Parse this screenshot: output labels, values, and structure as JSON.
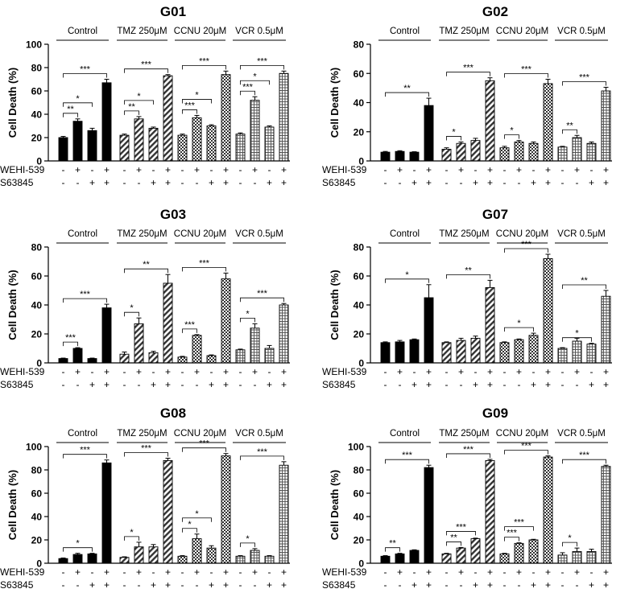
{
  "figure": {
    "ylabel": "Cell Death (%)",
    "row_labels": [
      "WEHI-539",
      "S63845"
    ],
    "row_signs": [
      [
        "-",
        "+",
        "-",
        "+"
      ],
      [
        "-",
        "-",
        "+",
        "+"
      ]
    ]
  },
  "chart_data": [
    {
      "type": "bar",
      "title": "G01",
      "ylabel": "Cell Death (%)",
      "ylim": [
        0,
        100
      ],
      "yticks": [
        0,
        20,
        40,
        60,
        80,
        100
      ],
      "categories": [
        "- / -",
        "+ / -",
        "- / +",
        "+ / +"
      ],
      "series": [
        {
          "name": "Control",
          "values": [
            20,
            34,
            26,
            67
          ],
          "errors": [
            1,
            2,
            2,
            3
          ],
          "comparisons": [
            {
              "to": 1,
              "label": "**"
            },
            {
              "to": 2,
              "label": "*"
            },
            {
              "to": 3,
              "label": "***"
            }
          ]
        },
        {
          "name": "TMZ 250μM",
          "values": [
            22,
            36,
            28,
            73
          ],
          "errors": [
            1,
            2,
            1,
            1
          ],
          "comparisons": [
            {
              "to": 1,
              "label": "**"
            },
            {
              "to": 2,
              "label": "*"
            },
            {
              "to": 3,
              "label": "***"
            }
          ]
        },
        {
          "name": "CCNU 20μM",
          "values": [
            22,
            37,
            30,
            74
          ],
          "errors": [
            1,
            2,
            1,
            3
          ],
          "comparisons": [
            {
              "to": 1,
              "label": "***"
            },
            {
              "to": 2,
              "label": "*"
            },
            {
              "to": 3,
              "label": "***"
            }
          ]
        },
        {
          "name": "VCR 0.5μM",
          "values": [
            23,
            52,
            29,
            75
          ],
          "errors": [
            1,
            3,
            1,
            2
          ],
          "comparisons": [
            {
              "to": 1,
              "label": "***"
            },
            {
              "to": 2,
              "label": "*"
            },
            {
              "to": 3,
              "label": "***"
            }
          ]
        }
      ]
    },
    {
      "type": "bar",
      "title": "G02",
      "ylabel": "Cell Death (%)",
      "ylim": [
        0,
        80
      ],
      "yticks": [
        0,
        20,
        40,
        60,
        80
      ],
      "categories": [
        "- / -",
        "+ / -",
        "- / +",
        "+ / +"
      ],
      "series": [
        {
          "name": "Control",
          "values": [
            6,
            6.5,
            6,
            38
          ],
          "errors": [
            0.5,
            0.5,
            0.3,
            5
          ],
          "comparisons": [
            {
              "to": 3,
              "label": "**"
            }
          ]
        },
        {
          "name": "TMZ 250μM",
          "values": [
            8,
            12,
            14,
            55
          ],
          "errors": [
            1,
            1,
            1.5,
            2
          ],
          "comparisons": [
            {
              "to": 1,
              "label": "*"
            },
            {
              "to": 3,
              "label": "***"
            }
          ]
        },
        {
          "name": "CCNU 20μM",
          "values": [
            9,
            13,
            12,
            53
          ],
          "errors": [
            1,
            1,
            1,
            3
          ],
          "comparisons": [
            {
              "to": 1,
              "label": "*"
            },
            {
              "to": 3,
              "label": "***"
            }
          ]
        },
        {
          "name": "VCR 0.5μM",
          "values": [
            9.5,
            16,
            12,
            48
          ],
          "errors": [
            0.5,
            1.5,
            1,
            2.5
          ],
          "comparisons": [
            {
              "to": 1,
              "label": "**"
            },
            {
              "to": 3,
              "label": "***"
            }
          ]
        }
      ]
    },
    {
      "type": "bar",
      "title": "G03",
      "ylabel": "Cell Death (%)",
      "ylim": [
        0,
        80
      ],
      "yticks": [
        0,
        20,
        40,
        60,
        80
      ],
      "categories": [
        "- / -",
        "+ / -",
        "- / +",
        "+ / +"
      ],
      "series": [
        {
          "name": "Control",
          "values": [
            3,
            10,
            3,
            38
          ],
          "errors": [
            0.3,
            0.5,
            0.3,
            2.5
          ],
          "comparisons": [
            {
              "to": 1,
              "label": "***"
            },
            {
              "to": 3,
              "label": "***"
            }
          ]
        },
        {
          "name": "TMZ 250μM",
          "values": [
            6,
            27,
            7,
            55
          ],
          "errors": [
            1.5,
            4,
            1,
            6
          ],
          "comparisons": [
            {
              "to": 1,
              "label": "*"
            },
            {
              "to": 3,
              "label": "**"
            }
          ]
        },
        {
          "name": "CCNU 20μM",
          "values": [
            4,
            19,
            5,
            58
          ],
          "errors": [
            0.5,
            0.5,
            0.5,
            4
          ],
          "comparisons": [
            {
              "to": 1,
              "label": "***"
            },
            {
              "to": 3,
              "label": "***"
            }
          ]
        },
        {
          "name": "VCR 0.5μM",
          "values": [
            9,
            24,
            10,
            40
          ],
          "errors": [
            0.5,
            3,
            2,
            1
          ],
          "comparisons": [
            {
              "to": 1,
              "label": "*"
            },
            {
              "to": 3,
              "label": "***"
            }
          ]
        }
      ]
    },
    {
      "type": "bar",
      "title": "G07",
      "ylabel": "Cell Death (%)",
      "ylim": [
        0,
        80
      ],
      "yticks": [
        0,
        20,
        40,
        60,
        80
      ],
      "categories": [
        "- / -",
        "+ / -",
        "- / +",
        "+ / +"
      ],
      "series": [
        {
          "name": "Control",
          "values": [
            14,
            14.5,
            16,
            45
          ],
          "errors": [
            0.5,
            1,
            0.5,
            9
          ],
          "comparisons": [
            {
              "to": 3,
              "label": "*"
            }
          ]
        },
        {
          "name": "TMZ 250μM",
          "values": [
            14,
            15.5,
            17,
            52
          ],
          "errors": [
            0.5,
            1.5,
            1.5,
            5
          ],
          "comparisons": [
            {
              "to": 3,
              "label": "**"
            }
          ]
        },
        {
          "name": "CCNU 20μM",
          "values": [
            14,
            16,
            19,
            72
          ],
          "errors": [
            0.5,
            0.5,
            1.5,
            3
          ],
          "comparisons": [
            {
              "to": 2,
              "label": "*"
            },
            {
              "to": 3,
              "label": "***"
            }
          ]
        },
        {
          "name": "VCR 0.5μM",
          "values": [
            10,
            15,
            13,
            46
          ],
          "errors": [
            0.5,
            2,
            0.5,
            4
          ],
          "comparisons": [
            {
              "to": 2,
              "label": "*"
            },
            {
              "to": 3,
              "label": "**"
            }
          ]
        }
      ]
    },
    {
      "type": "bar",
      "title": "G08",
      "ylabel": "Cell Death (%)",
      "ylim": [
        0,
        100
      ],
      "yticks": [
        0,
        20,
        40,
        60,
        80,
        100
      ],
      "categories": [
        "- / -",
        "+ / -",
        "- / +",
        "+ / +"
      ],
      "series": [
        {
          "name": "Control",
          "values": [
            4,
            7.5,
            8,
            86
          ],
          "errors": [
            0.5,
            1,
            0.5,
            2.5
          ],
          "comparisons": [
            {
              "to": 2,
              "label": "*"
            },
            {
              "to": 3,
              "label": "***"
            }
          ]
        },
        {
          "name": "TMZ 250μM",
          "values": [
            5,
            14,
            14,
            88
          ],
          "errors": [
            0.5,
            4,
            2,
            2
          ],
          "comparisons": [
            {
              "to": 1,
              "label": "*"
            },
            {
              "to": 3,
              "label": "***"
            }
          ]
        },
        {
          "name": "CCNU 20μM",
          "values": [
            6,
            21,
            13,
            92
          ],
          "errors": [
            0.5,
            4,
            2,
            2
          ],
          "comparisons": [
            {
              "to": 1,
              "label": "*"
            },
            {
              "to": 2,
              "label": "*"
            },
            {
              "to": 3,
              "label": "***"
            }
          ]
        },
        {
          "name": "VCR 0.5μM",
          "values": [
            6,
            11,
            6,
            84
          ],
          "errors": [
            0.5,
            1.5,
            0.5,
            3
          ],
          "comparisons": [
            {
              "to": 1,
              "label": "*"
            },
            {
              "to": 3,
              "label": "***"
            }
          ]
        }
      ]
    },
    {
      "type": "bar",
      "title": "G09",
      "ylabel": "Cell Death (%)",
      "ylim": [
        0,
        100
      ],
      "yticks": [
        0,
        20,
        40,
        60,
        80,
        100
      ],
      "categories": [
        "- / -",
        "+ / -",
        "- / +",
        "+ / +"
      ],
      "series": [
        {
          "name": "Control",
          "values": [
            6,
            8,
            11,
            82
          ],
          "errors": [
            0.5,
            0.5,
            0.5,
            2
          ],
          "comparisons": [
            {
              "to": 1,
              "label": "**"
            },
            {
              "to": 3,
              "label": "***"
            }
          ]
        },
        {
          "name": "TMZ 250μM",
          "values": [
            8,
            13,
            21,
            88
          ],
          "errors": [
            0.5,
            0.5,
            0.5,
            1
          ],
          "comparisons": [
            {
              "to": 1,
              "label": "**"
            },
            {
              "to": 2,
              "label": "***"
            },
            {
              "to": 3,
              "label": "***"
            }
          ]
        },
        {
          "name": "CCNU 20μM",
          "values": [
            8,
            17,
            20,
            91
          ],
          "errors": [
            0.5,
            0.5,
            0.5,
            1
          ],
          "comparisons": [
            {
              "to": 1,
              "label": "***"
            },
            {
              "to": 2,
              "label": "***"
            },
            {
              "to": 3,
              "label": "***"
            }
          ]
        },
        {
          "name": "VCR 0.5μM",
          "values": [
            7,
            10,
            10,
            83
          ],
          "errors": [
            2,
            3,
            2,
            1
          ],
          "comparisons": [
            {
              "to": 1,
              "label": "*"
            },
            {
              "to": 3,
              "label": "***"
            }
          ]
        }
      ]
    }
  ]
}
